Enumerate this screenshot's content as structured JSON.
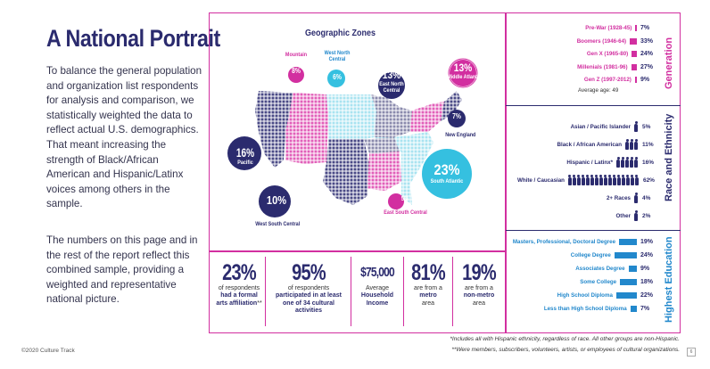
{
  "page": {
    "title": "A National Portrait",
    "paragraph1": "To balance the general population and organization list respondents for analysis and comparison, we statistically weighted the data to reflect actual U.S. demographics. That meant increasing the strength of Black/African American and Hispanic/Latinx voices among others in the sample.",
    "paragraph2": "The numbers on this page and in the rest of the report reflect this combined sample, providing a weighted and representative national picture.",
    "copyright": "©2020 Culture Track",
    "footnote1": "*Includes all with Hispanic ethnicity, regardless of race. All other groups are non-Hispanic.",
    "footnote2": "**Were members, subscribers, volunteers, artists, or employees of cultural organizations.",
    "page_number": "6"
  },
  "map": {
    "title": "Geographic Zones",
    "zones": [
      {
        "name": "Pacific",
        "pct": "16%"
      },
      {
        "name": "Mountain",
        "pct": "8%"
      },
      {
        "name": "West North Central",
        "pct": "6%"
      },
      {
        "name": "East North Central",
        "pct": "13%"
      },
      {
        "name": "Middle Atlantic",
        "pct": "13%"
      },
      {
        "name": "New England",
        "pct": "7%"
      },
      {
        "name": "South Atlantic",
        "pct": "23%"
      },
      {
        "name": "East South Central",
        "pct": "5%"
      },
      {
        "name": "West South Central",
        "pct": "10%"
      }
    ]
  },
  "stats": [
    {
      "value": "23%",
      "pre": "of respondents",
      "bold": "had a formal arts affiliation",
      "post": "**"
    },
    {
      "value": "95%",
      "pre": "of respondents",
      "bold": "participated in at least one of 34 cultural activities",
      "post": ""
    },
    {
      "value": "$75,000",
      "pre": "Average",
      "bold": "Household Income",
      "post": ""
    },
    {
      "value": "81%",
      "pre": "are from a",
      "bold": "metro",
      "post": "area"
    },
    {
      "value": "19%",
      "pre": "are from a",
      "bold": "non-metro",
      "post": "area"
    }
  ],
  "generation": {
    "title": "Generation",
    "average": "Average age: 49",
    "rows": [
      {
        "label": "Pre-War (1928-45)",
        "value": "7%",
        "pct": 7
      },
      {
        "label": "Boomers (1946-64)",
        "value": "33%",
        "pct": 33
      },
      {
        "label": "Gen X (1965-80)",
        "value": "24%",
        "pct": 24
      },
      {
        "label": "Millenials (1981-96)",
        "value": "27%",
        "pct": 27
      },
      {
        "label": "Gen Z (1997-2012)",
        "value": "9%",
        "pct": 9
      }
    ]
  },
  "race": {
    "title": "Race and Ethnicity",
    "rows": [
      {
        "label": "Asian / Pacific Islander",
        "value": "5%",
        "icons": 1
      },
      {
        "label": "Black / African American",
        "value": "11%",
        "icons": 3
      },
      {
        "label": "Hispanic / Latinx*",
        "value": "16%",
        "icons": 5
      },
      {
        "label": "White / Caucasian",
        "value": "62%",
        "icons": 16
      },
      {
        "label": "2+ Races",
        "value": "4%",
        "icons": 1
      },
      {
        "label": "Other",
        "value": "2%",
        "icons": 1
      }
    ]
  },
  "education": {
    "title": "Highest Education",
    "rows": [
      {
        "label": "Masters, Professional, Doctoral Degree",
        "value": "19%",
        "pct": 19
      },
      {
        "label": "College Degree",
        "value": "24%",
        "pct": 24
      },
      {
        "label": "Associates Degree",
        "value": "9%",
        "pct": 9
      },
      {
        "label": "Some College",
        "value": "18%",
        "pct": 18
      },
      {
        "label": "High School Diploma",
        "value": "22%",
        "pct": 22
      },
      {
        "label": "Less than High School Diploma",
        "value": "7%",
        "pct": 7
      }
    ]
  },
  "colors": {
    "navy": "#2b2b6e",
    "magenta": "#d22fa0",
    "pink": "#e879c6",
    "cyan": "#35c0e0",
    "light_cyan": "#9fe0ef",
    "gray_navy": "#6d6d96",
    "blue": "#2288cc"
  }
}
